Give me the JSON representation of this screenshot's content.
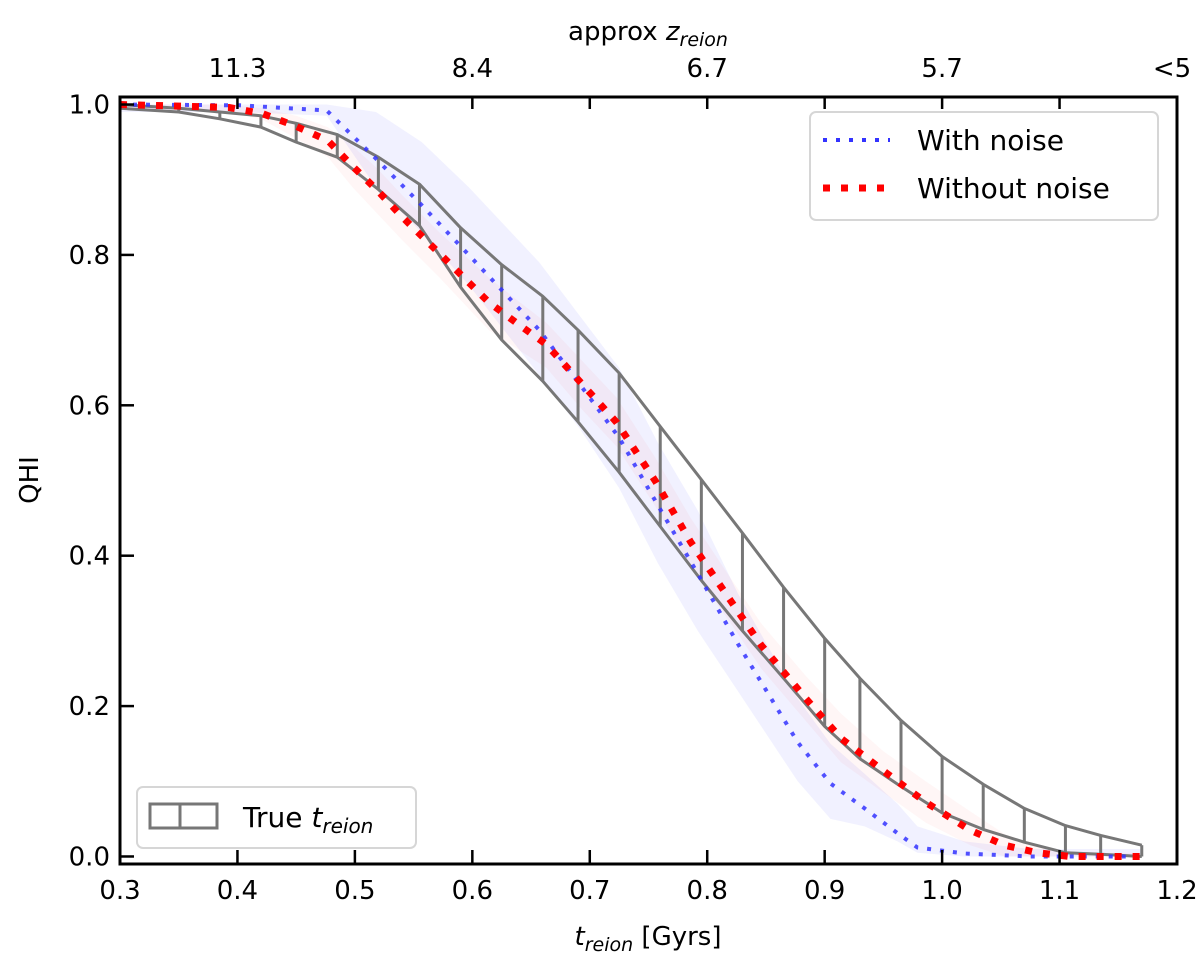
{
  "chart_data": {
    "type": "line",
    "xlabel_main": "t",
    "xlabel_sub": "reion",
    "xlabel_unit": " [Gyrs]",
    "ylabel": "QHI",
    "top_axis": {
      "label_main": "approx ",
      "label_var": "z",
      "label_sub": "reion",
      "tick_positions": [
        0.4,
        0.6,
        0.8,
        1.0,
        1.2
      ],
      "tick_labels": [
        "11.3",
        "8.4",
        "6.7",
        "5.7",
        "<5"
      ],
      "minor_ticks": [
        0.3,
        0.5,
        0.7,
        0.9,
        1.1
      ]
    },
    "xlim": [
      0.3,
      1.2
    ],
    "ylim": [
      -0.01,
      1.01
    ],
    "xticks": [
      0.3,
      0.4,
      0.5,
      0.6,
      0.7,
      0.8,
      0.9,
      1.0,
      1.1,
      1.2
    ],
    "xtick_labels": [
      "0.3",
      "0.4",
      "0.5",
      "0.6",
      "0.7",
      "0.8",
      "0.9",
      "1.0",
      "1.1",
      "1.2"
    ],
    "yticks": [
      0.0,
      0.2,
      0.4,
      0.6,
      0.8,
      1.0
    ],
    "ytick_labels": [
      "0.0",
      "0.2",
      "0.4",
      "0.6",
      "0.8",
      "1.0"
    ],
    "grid": false,
    "series": [
      {
        "name": "With noise",
        "color": "#3333ff",
        "style": "dotted",
        "x": [
          0.3,
          0.402,
          0.476,
          0.518,
          0.557,
          0.597,
          0.627,
          0.657,
          0.691,
          0.725,
          0.758,
          0.792,
          0.826,
          0.877,
          0.905,
          0.934,
          0.962,
          0.979,
          1.019,
          1.075,
          1.17
        ],
        "y": [
          1.0,
          0.999,
          0.992,
          0.928,
          0.866,
          0.8,
          0.75,
          0.7,
          0.629,
          0.557,
          0.467,
          0.376,
          0.283,
          0.152,
          0.097,
          0.064,
          0.031,
          0.012,
          0.004,
          0.0,
          0.0
        ],
        "band_upper": [
          1.0,
          1.0,
          1.0,
          0.99,
          0.95,
          0.89,
          0.84,
          0.79,
          0.72,
          0.65,
          0.55,
          0.46,
          0.35,
          0.21,
          0.15,
          0.11,
          0.07,
          0.04,
          0.02,
          0.01,
          0.01
        ],
        "band_lower": [
          0.99,
          0.99,
          0.985,
          0.89,
          0.83,
          0.76,
          0.7,
          0.64,
          0.57,
          0.49,
          0.39,
          0.3,
          0.22,
          0.1,
          0.05,
          0.04,
          0.02,
          0.005,
          0.0,
          0.0,
          0.0
        ]
      },
      {
        "name": "Without noise",
        "color": "#ff0000",
        "style": "dotted",
        "x": [
          0.3,
          0.393,
          0.421,
          0.45,
          0.477,
          0.498,
          0.519,
          0.54,
          0.572,
          0.614,
          0.638,
          0.663,
          0.693,
          0.723,
          0.756,
          0.786,
          0.82,
          0.846,
          0.884,
          0.914,
          0.95,
          0.986,
          1.024,
          1.053,
          1.081,
          1.109,
          1.169
        ],
        "y": [
          1.0,
          0.996,
          0.988,
          0.971,
          0.952,
          0.918,
          0.886,
          0.851,
          0.802,
          0.737,
          0.709,
          0.681,
          0.629,
          0.577,
          0.499,
          0.418,
          0.34,
          0.281,
          0.21,
          0.157,
          0.114,
          0.072,
          0.035,
          0.015,
          0.005,
          0.0,
          0.0
        ],
        "band_upper": [
          1.0,
          1.0,
          0.995,
          0.985,
          0.97,
          0.945,
          0.915,
          0.88,
          0.83,
          0.77,
          0.74,
          0.71,
          0.66,
          0.61,
          0.53,
          0.45,
          0.37,
          0.31,
          0.24,
          0.19,
          0.14,
          0.1,
          0.06,
          0.03,
          0.015,
          0.005,
          0.005
        ],
        "band_lower": [
          0.995,
          0.99,
          0.98,
          0.955,
          0.93,
          0.89,
          0.855,
          0.82,
          0.77,
          0.7,
          0.675,
          0.65,
          0.595,
          0.545,
          0.465,
          0.385,
          0.31,
          0.25,
          0.18,
          0.125,
          0.085,
          0.045,
          0.015,
          0.0,
          0.0,
          0.0,
          0.0
        ]
      }
    ],
    "true_band": {
      "name_main": "True ",
      "name_var": "t",
      "name_sub": "reion",
      "color": "#777777",
      "x": [
        0.3,
        0.35,
        0.385,
        0.42,
        0.45,
        0.485,
        0.52,
        0.555,
        0.59,
        0.625,
        0.66,
        0.69,
        0.725,
        0.76,
        0.795,
        0.83,
        0.865,
        0.9,
        0.93,
        0.965,
        1.0,
        1.035,
        1.07,
        1.105,
        1.135,
        1.17
      ],
      "upper": [
        1.0,
        0.995,
        0.99,
        0.985,
        0.975,
        0.96,
        0.93,
        0.894,
        0.836,
        0.787,
        0.745,
        0.7,
        0.643,
        0.572,
        0.501,
        0.43,
        0.358,
        0.29,
        0.237,
        0.181,
        0.133,
        0.096,
        0.064,
        0.041,
        0.028,
        0.015
      ],
      "lower": [
        0.995,
        0.99,
        0.981,
        0.97,
        0.95,
        0.93,
        0.887,
        0.839,
        0.757,
        0.687,
        0.632,
        0.578,
        0.511,
        0.439,
        0.367,
        0.3,
        0.237,
        0.173,
        0.13,
        0.093,
        0.058,
        0.036,
        0.019,
        0.005,
        0.003,
        0.0
      ]
    },
    "legend_placement": [
      "top-right",
      "bottom-left"
    ]
  }
}
